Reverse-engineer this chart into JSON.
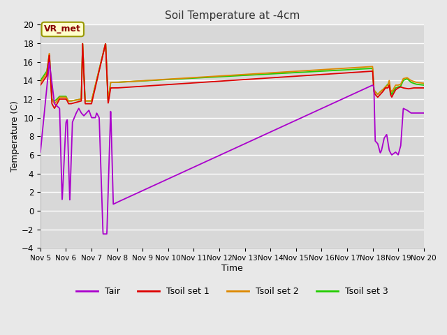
{
  "title": "Soil Temperature at -4cm",
  "xlabel": "Time",
  "ylabel": "Temperature (C)",
  "ylim": [
    -4,
    20
  ],
  "xlim_days": [
    5,
    20
  ],
  "background_color": "#e8e8e8",
  "plot_bg_color": "#d8d8d8",
  "grid_color": "#ffffff",
  "annotation_text": "VR_met",
  "annotation_box_color": "#ffffcc",
  "annotation_edge_color": "#999900",
  "legend_entries": [
    "Tair",
    "Tsoil set 1",
    "Tsoil set 2",
    "Tsoil set 3"
  ],
  "legend_colors": [
    "#aa00cc",
    "#dd0000",
    "#dd8800",
    "#22cc00"
  ],
  "tick_labels": [
    "Nov 5",
    "Nov 6",
    "Nov 7",
    "Nov 8",
    "Nov 9",
    "Nov 10",
    "Nov 11",
    "Nov 12",
    "Nov 13",
    "Nov 14",
    "Nov 15",
    "Nov 16",
    "Nov 17",
    "Nov 18",
    "Nov 19",
    "Nov 20"
  ],
  "tick_positions": [
    5,
    6,
    7,
    8,
    9,
    10,
    11,
    12,
    13,
    14,
    15,
    16,
    17,
    18,
    19,
    20
  ]
}
